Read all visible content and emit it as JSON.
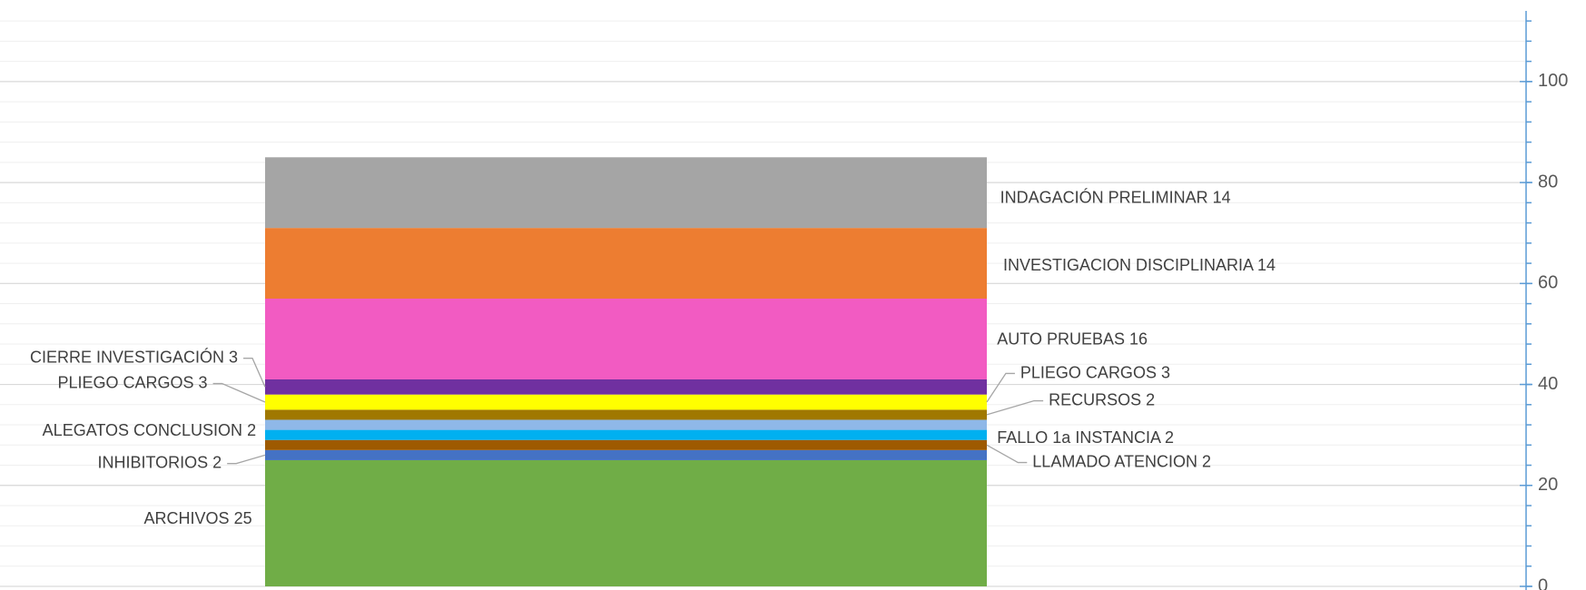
{
  "chart_data": {
    "type": "stacked_bar",
    "categories": [
      null
    ],
    "series": [
      {
        "name": "ARCHIVOS",
        "color": "#70ad47",
        "values": [
          25
        ]
      },
      {
        "name": "INHIBITORIOS",
        "color": "#4472c4",
        "values": [
          2
        ]
      },
      {
        "name": "LLAMADO ATENCION",
        "color": "#9e5a00",
        "values": [
          2
        ]
      },
      {
        "name": "FALLO 1a INSTANCIA",
        "color": "#00b0f0",
        "values": [
          2
        ]
      },
      {
        "name": "ALEGATOS CONCLUSION",
        "color": "#8fb8e8",
        "values": [
          2
        ]
      },
      {
        "name": "RECURSOS",
        "color": "#a07800",
        "values": [
          2
        ]
      },
      {
        "name": "PLIEGO CARGOS",
        "color": "#ffff00",
        "values": [
          3
        ]
      },
      {
        "name": "CIERRE INVESTIGACIÓN",
        "color": "#7030a0",
        "values": [
          3
        ]
      },
      {
        "name": "AUTO PRUEBAS",
        "color": "#f25bc2",
        "values": [
          16
        ]
      },
      {
        "name": "INVESTIGACION DISCIPLINARIA",
        "color": "#ed7d31",
        "values": [
          14
        ]
      },
      {
        "name": "INDAGACIÓN PRELIMINAR",
        "color": "#a5a5a5",
        "values": [
          14
        ]
      }
    ],
    "ylim": [
      0,
      114
    ],
    "yticks": [
      0,
      20,
      40,
      60,
      80,
      100
    ],
    "yticks_minor": [
      0,
      4,
      8,
      12,
      16,
      20,
      24,
      28,
      32,
      36,
      40,
      44,
      48,
      52,
      56,
      60,
      64,
      68,
      72,
      76,
      80,
      84,
      88,
      92,
      96,
      100,
      104,
      108,
      112
    ],
    "axis_side": "right",
    "axis_color": "#5b9bd5",
    "grid": true
  }
}
